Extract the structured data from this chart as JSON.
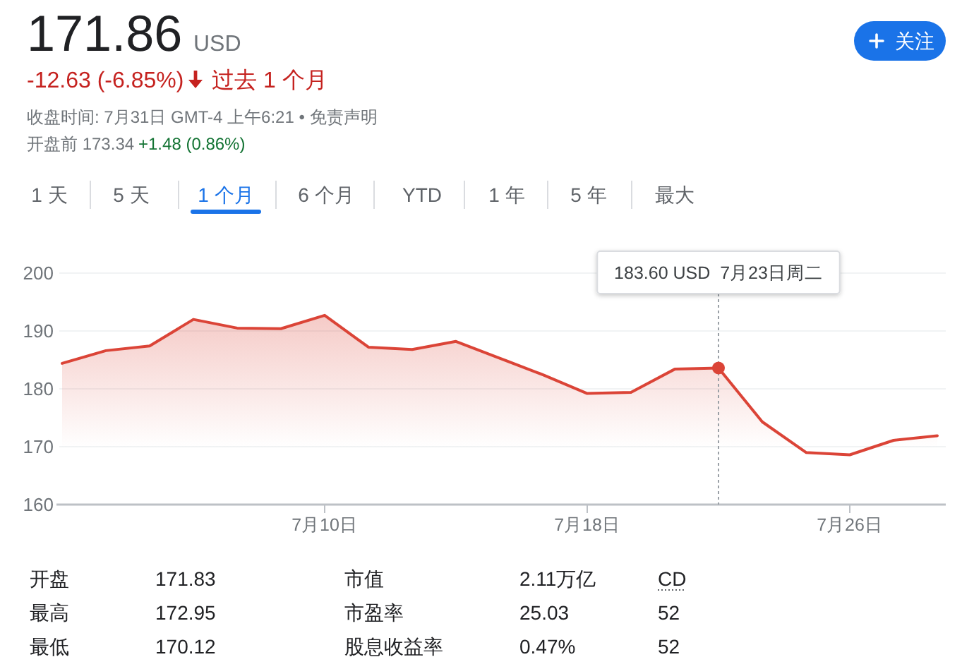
{
  "chart_data": {
    "type": "area",
    "title": "171.86",
    "subtitle": "-12.63 (-6.85%)",
    "categories": [
      null,
      null,
      null,
      null,
      null,
      null,
      "7月10日",
      null,
      null,
      null,
      null,
      null,
      "7月18日",
      null,
      null,
      null,
      null,
      null,
      "7月26日",
      null,
      null
    ],
    "values": [
      184.4,
      186.6,
      187.4,
      192.0,
      190.5,
      190.4,
      192.7,
      187.2,
      186.8,
      188.2,
      185.3,
      182.4,
      179.2,
      179.4,
      183.4,
      183.6,
      174.3,
      169.0,
      168.6,
      171.1,
      171.9
    ],
    "color": "#db4437",
    "ylim": [
      160,
      200
    ],
    "yticks": [
      160,
      170,
      180,
      190,
      200
    ],
    "grid": "y",
    "annotations": [
      "USD",
      "过去 1 个月",
      "收盘时间: 7月31日 GMT-4 上午6:21 • 免责声明",
      "开盘前 173.34",
      "+1.48 (0.86%)",
      "关注",
      "1 天",
      "5 天",
      "1 个月",
      "6 个月",
      "YTD",
      "1 年",
      "5 年",
      "最大",
      "开盘",
      "171.83",
      "最高",
      "172.95",
      "最低",
      "170.12",
      "市值",
      "2.11万亿",
      "市盈率",
      "25.03",
      "股息收益率",
      "0.47%",
      "CD",
      "52",
      "52",
      "183.60 USD  7月23日周二"
    ]
  }
}
